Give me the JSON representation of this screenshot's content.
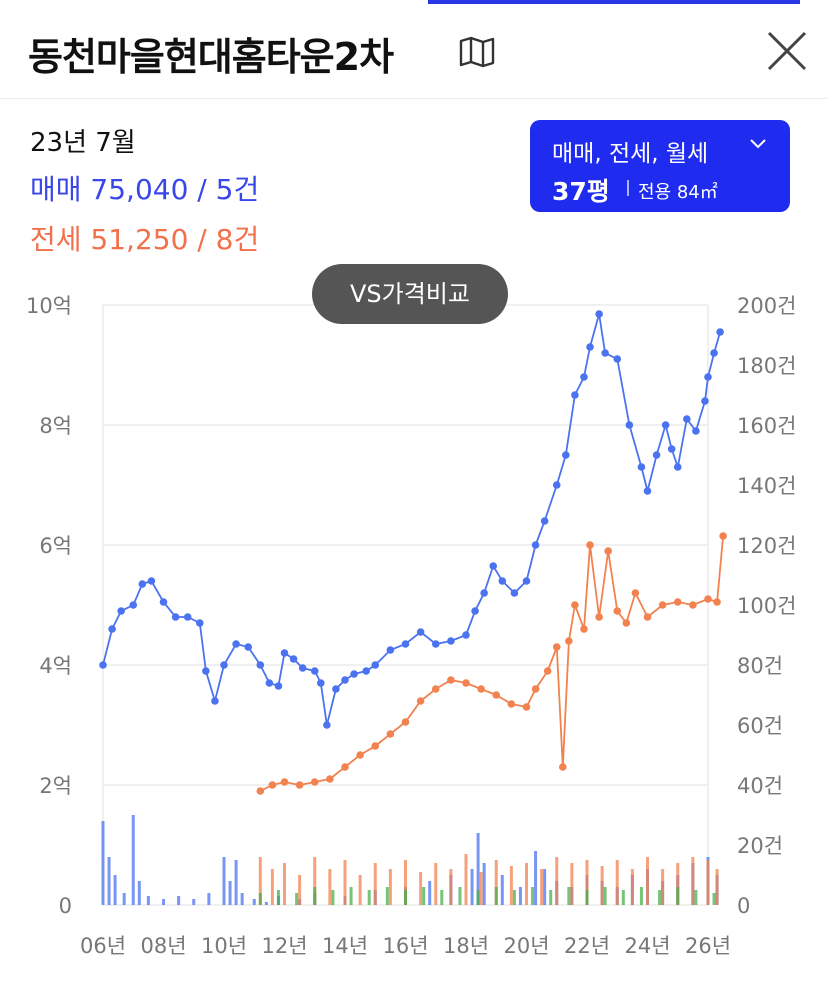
{
  "header": {
    "title": "동천마을현대홈타운2차"
  },
  "summary": {
    "date": "23년 7월",
    "sale_label": "매매 75,040 / 5건",
    "jeonse_label": "전세 51,250 / 8건"
  },
  "filter": {
    "types": "매매, 전세, 월세",
    "size": "37평",
    "area": "전용 84㎡"
  },
  "vs_button": {
    "label": "VS가격비교"
  },
  "colors": {
    "sale": "#4b73f0",
    "jeonse": "#f2824f",
    "monthly": "#48b04a",
    "accent": "#1f2cf0"
  },
  "chart_data": {
    "type": "line",
    "x_tick_labels": [
      "06년",
      "08년",
      "10년",
      "12년",
      "14년",
      "16년",
      "18년",
      "20년",
      "22년",
      "24년",
      "26년"
    ],
    "y_left_tick_labels": [
      "0",
      "2억",
      "4억",
      "6억",
      "8억",
      "10억"
    ],
    "y_right_tick_labels": [
      "0",
      "20건",
      "40건",
      "60건",
      "80건",
      "100건",
      "120건",
      "140건",
      "160건",
      "180건",
      "200건"
    ],
    "y_left_range": [
      0,
      10
    ],
    "y_right_range": [
      0,
      200
    ],
    "x_range": [
      2006,
      2026
    ],
    "grid": true,
    "series": [
      {
        "key": "sale",
        "points": [
          [
            2006.0,
            4.0
          ],
          [
            2006.3,
            4.6
          ],
          [
            2006.6,
            4.9
          ],
          [
            2007.0,
            5.0
          ],
          [
            2007.3,
            5.35
          ],
          [
            2007.6,
            5.4
          ],
          [
            2008.0,
            5.05
          ],
          [
            2008.4,
            4.8
          ],
          [
            2008.8,
            4.8
          ],
          [
            2009.2,
            4.7
          ],
          [
            2009.4,
            3.9
          ],
          [
            2009.7,
            3.4
          ],
          [
            2010.0,
            4.0
          ],
          [
            2010.4,
            4.35
          ],
          [
            2010.8,
            4.3
          ],
          [
            2011.2,
            4.0
          ],
          [
            2011.5,
            3.7
          ],
          [
            2011.8,
            3.65
          ],
          [
            2012.0,
            4.2
          ],
          [
            2012.3,
            4.1
          ],
          [
            2012.6,
            3.95
          ],
          [
            2013.0,
            3.9
          ],
          [
            2013.2,
            3.7
          ],
          [
            2013.4,
            3.0
          ],
          [
            2013.7,
            3.6
          ],
          [
            2014.0,
            3.75
          ],
          [
            2014.3,
            3.85
          ],
          [
            2014.7,
            3.9
          ],
          [
            2015.0,
            4.0
          ],
          [
            2015.5,
            4.25
          ],
          [
            2016.0,
            4.35
          ],
          [
            2016.5,
            4.55
          ],
          [
            2017.0,
            4.35
          ],
          [
            2017.5,
            4.4
          ],
          [
            2018.0,
            4.5
          ],
          [
            2018.3,
            4.9
          ],
          [
            2018.6,
            5.2
          ],
          [
            2018.9,
            5.65
          ],
          [
            2019.2,
            5.4
          ],
          [
            2019.6,
            5.2
          ],
          [
            2020.0,
            5.4
          ],
          [
            2020.3,
            6.0
          ],
          [
            2020.6,
            6.4
          ],
          [
            2021.0,
            7.0
          ],
          [
            2021.3,
            7.5
          ],
          [
            2021.6,
            8.5
          ],
          [
            2021.9,
            8.8
          ],
          [
            2022.1,
            9.3
          ],
          [
            2022.4,
            9.85
          ],
          [
            2022.6,
            9.2
          ],
          [
            2023.0,
            9.1
          ],
          [
            2023.4,
            8.0
          ],
          [
            2023.8,
            7.3
          ],
          [
            2024.0,
            6.9
          ],
          [
            2024.3,
            7.5
          ],
          [
            2024.6,
            8.0
          ],
          [
            2024.8,
            7.6
          ],
          [
            2025.0,
            7.3
          ],
          [
            2025.3,
            8.1
          ],
          [
            2025.6,
            7.9
          ],
          [
            2025.9,
            8.4
          ],
          [
            2026.0,
            8.8
          ],
          [
            2026.2,
            9.2
          ],
          [
            2026.4,
            9.55
          ]
        ]
      },
      {
        "key": "jeonse",
        "points": [
          [
            2011.2,
            1.9
          ],
          [
            2011.6,
            2.0
          ],
          [
            2012.0,
            2.05
          ],
          [
            2012.5,
            2.0
          ],
          [
            2013.0,
            2.05
          ],
          [
            2013.5,
            2.1
          ],
          [
            2014.0,
            2.3
          ],
          [
            2014.5,
            2.5
          ],
          [
            2015.0,
            2.65
          ],
          [
            2015.5,
            2.85
          ],
          [
            2016.0,
            3.05
          ],
          [
            2016.5,
            3.4
          ],
          [
            2017.0,
            3.6
          ],
          [
            2017.5,
            3.75
          ],
          [
            2018.0,
            3.7
          ],
          [
            2018.5,
            3.6
          ],
          [
            2019.0,
            3.5
          ],
          [
            2019.5,
            3.35
          ],
          [
            2020.0,
            3.3
          ],
          [
            2020.3,
            3.6
          ],
          [
            2020.7,
            3.9
          ],
          [
            2021.0,
            4.3
          ],
          [
            2021.2,
            2.3
          ],
          [
            2021.4,
            4.4
          ],
          [
            2021.6,
            5.0
          ],
          [
            2021.9,
            4.6
          ],
          [
            2022.1,
            6.0
          ],
          [
            2022.4,
            4.8
          ],
          [
            2022.7,
            5.9
          ],
          [
            2023.0,
            4.9
          ],
          [
            2023.3,
            4.7
          ],
          [
            2023.6,
            5.2
          ],
          [
            2024.0,
            4.8
          ],
          [
            2024.5,
            5.0
          ],
          [
            2025.0,
            5.05
          ],
          [
            2025.5,
            5.0
          ],
          [
            2026.0,
            5.1
          ],
          [
            2026.3,
            5.05
          ],
          [
            2026.5,
            6.15
          ]
        ]
      }
    ],
    "volume_series": [
      {
        "key": "sale",
        "points": [
          [
            2006.0,
            28
          ],
          [
            2006.2,
            16
          ],
          [
            2006.4,
            10
          ],
          [
            2006.7,
            4
          ],
          [
            2007.0,
            30
          ],
          [
            2007.2,
            8
          ],
          [
            2007.5,
            3
          ],
          [
            2008.0,
            2
          ],
          [
            2008.5,
            3
          ],
          [
            2009.0,
            2
          ],
          [
            2009.5,
            4
          ],
          [
            2010.0,
            16
          ],
          [
            2010.2,
            8
          ],
          [
            2010.4,
            15
          ],
          [
            2010.6,
            4
          ],
          [
            2011.0,
            2
          ],
          [
            2011.4,
            1
          ],
          [
            2011.8,
            3
          ],
          [
            2012.5,
            2
          ],
          [
            2013.0,
            4
          ],
          [
            2014.0,
            3
          ],
          [
            2015.0,
            5
          ],
          [
            2016.0,
            6
          ],
          [
            2016.8,
            8
          ],
          [
            2017.5,
            10
          ],
          [
            2018.2,
            12
          ],
          [
            2018.4,
            24
          ],
          [
            2018.6,
            14
          ],
          [
            2019.2,
            10
          ],
          [
            2019.8,
            6
          ],
          [
            2020.3,
            18
          ],
          [
            2020.6,
            12
          ],
          [
            2021.0,
            8
          ],
          [
            2021.5,
            6
          ],
          [
            2022.0,
            10
          ],
          [
            2022.5,
            8
          ],
          [
            2023.0,
            6
          ],
          [
            2023.5,
            10
          ],
          [
            2024.0,
            12
          ],
          [
            2024.5,
            8
          ],
          [
            2025.0,
            10
          ],
          [
            2025.5,
            14
          ],
          [
            2026.0,
            16
          ],
          [
            2026.3,
            10
          ]
        ]
      },
      {
        "key": "jeonse",
        "points": [
          [
            2011.2,
            16
          ],
          [
            2011.6,
            12
          ],
          [
            2012.0,
            14
          ],
          [
            2012.5,
            10
          ],
          [
            2013.0,
            16
          ],
          [
            2013.5,
            12
          ],
          [
            2014.0,
            15
          ],
          [
            2014.5,
            10
          ],
          [
            2015.0,
            14
          ],
          [
            2015.5,
            12
          ],
          [
            2016.0,
            15
          ],
          [
            2016.5,
            11
          ],
          [
            2017.0,
            14
          ],
          [
            2017.5,
            12
          ],
          [
            2018.0,
            17
          ],
          [
            2018.5,
            11
          ],
          [
            2019.0,
            15
          ],
          [
            2019.5,
            13
          ],
          [
            2020.0,
            14
          ],
          [
            2020.5,
            12
          ],
          [
            2021.0,
            16
          ],
          [
            2021.5,
            14
          ],
          [
            2022.0,
            15
          ],
          [
            2022.5,
            13
          ],
          [
            2023.0,
            15
          ],
          [
            2023.5,
            12
          ],
          [
            2024.0,
            16
          ],
          [
            2024.5,
            12
          ],
          [
            2025.0,
            14
          ],
          [
            2025.5,
            16
          ],
          [
            2026.0,
            15
          ],
          [
            2026.3,
            12
          ]
        ]
      },
      {
        "key": "monthly",
        "points": [
          [
            2011.2,
            4
          ],
          [
            2011.8,
            5
          ],
          [
            2012.4,
            4
          ],
          [
            2013.0,
            6
          ],
          [
            2013.6,
            5
          ],
          [
            2014.2,
            6
          ],
          [
            2014.8,
            5
          ],
          [
            2015.4,
            6
          ],
          [
            2016.0,
            5
          ],
          [
            2016.6,
            6
          ],
          [
            2017.2,
            5
          ],
          [
            2017.8,
            6
          ],
          [
            2018.4,
            5
          ],
          [
            2019.0,
            6
          ],
          [
            2019.6,
            5
          ],
          [
            2020.2,
            6
          ],
          [
            2020.8,
            5
          ],
          [
            2021.4,
            6
          ],
          [
            2022.0,
            5
          ],
          [
            2022.6,
            6
          ],
          [
            2023.2,
            5
          ],
          [
            2023.8,
            6
          ],
          [
            2024.4,
            5
          ],
          [
            2025.0,
            6
          ],
          [
            2025.6,
            5
          ],
          [
            2026.2,
            4
          ]
        ]
      }
    ]
  }
}
